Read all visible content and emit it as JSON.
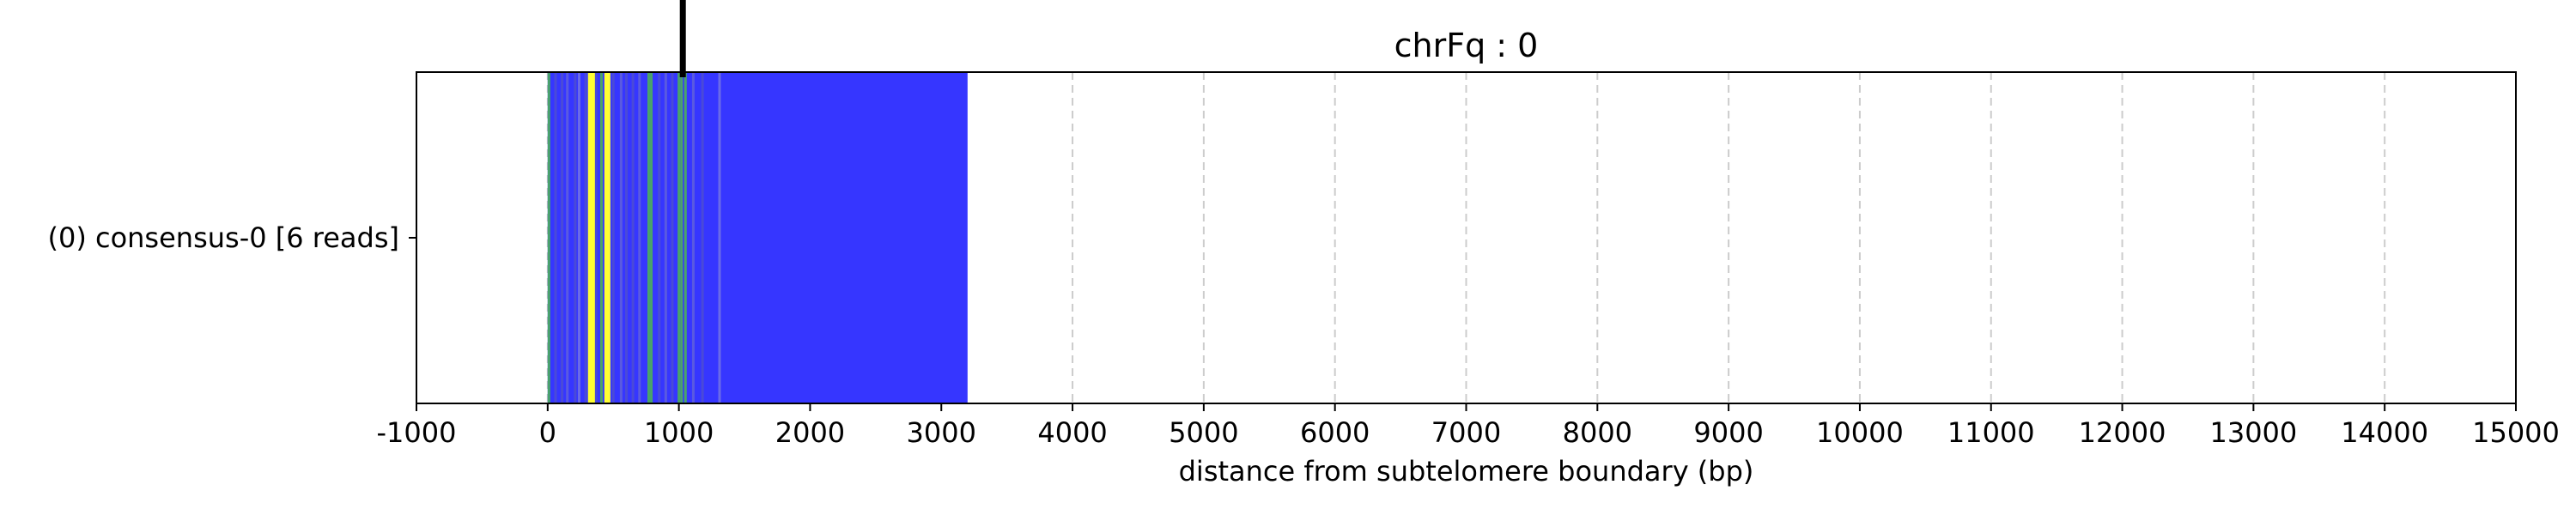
{
  "chart_data": {
    "type": "bar",
    "title": "chrFq : 0",
    "xlabel": "distance from subtelomere boundary (bp)",
    "ylabel": "",
    "xlim": [
      -1000,
      15000
    ],
    "xticks": [
      -1000,
      0,
      1000,
      2000,
      3000,
      4000,
      5000,
      6000,
      7000,
      8000,
      9000,
      10000,
      11000,
      12000,
      13000,
      14000,
      15000
    ],
    "grid": "vertical dashed",
    "categories": [
      "(0) consensus-0 [6 reads]"
    ],
    "read_span": {
      "start": 0,
      "end": 3200,
      "color": "#3636ff"
    },
    "marker_position": 1030,
    "stripes": [
      {
        "x": 10,
        "color": "#4aa36a"
      },
      {
        "x": 60,
        "color": "#4a4ad8"
      },
      {
        "x": 110,
        "color": "#4a4ad8"
      },
      {
        "x": 150,
        "color": "#5a5ae0"
      },
      {
        "x": 210,
        "color": "#4a4ad8"
      },
      {
        "x": 240,
        "color": "#6a6ae8"
      },
      {
        "x": 290,
        "color": "#4a4ad8"
      },
      {
        "x": 330,
        "color": "#ffff33"
      },
      {
        "x": 350,
        "color": "#ffff33"
      },
      {
        "x": 370,
        "color": "#4a4ad8"
      },
      {
        "x": 410,
        "color": "#4aa36a"
      },
      {
        "x": 455,
        "color": "#ffff33"
      },
      {
        "x": 500,
        "color": "#4a4ad8"
      },
      {
        "x": 560,
        "color": "#5a5ae0"
      },
      {
        "x": 600,
        "color": "#4a4ad8"
      },
      {
        "x": 650,
        "color": "#4a4ad8"
      },
      {
        "x": 700,
        "color": "#5a5ae0"
      },
      {
        "x": 770,
        "color": "#4aa36a"
      },
      {
        "x": 790,
        "color": "#4aa36a"
      },
      {
        "x": 850,
        "color": "#4a4ad8"
      },
      {
        "x": 900,
        "color": "#5a5ae0"
      },
      {
        "x": 950,
        "color": "#4a4ad8"
      },
      {
        "x": 1000,
        "color": "#4aa36a"
      },
      {
        "x": 1020,
        "color": "#4aa36a"
      },
      {
        "x": 1050,
        "color": "#4aa36a"
      },
      {
        "x": 1110,
        "color": "#5a5ae0"
      },
      {
        "x": 1180,
        "color": "#4a4ad8"
      },
      {
        "x": 1310,
        "color": "#6a6ae8"
      }
    ]
  }
}
